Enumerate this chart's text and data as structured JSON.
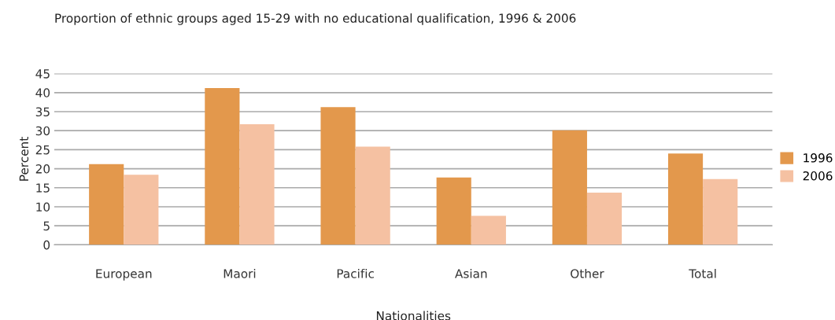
{
  "chart_data": {
    "type": "bar",
    "title": "Proportion of ethnic groups aged 15-29 with no educational qualification, 1996 & 2006",
    "xlabel": "Nationalities",
    "ylabel": "Percent",
    "categories": [
      "European",
      "Maori",
      "Pacific",
      "Asian",
      "Other",
      "Total"
    ],
    "series": [
      {
        "name": "1996",
        "color": "#e3984c",
        "values": [
          21.2,
          41.2,
          36.2,
          17.7,
          30.1,
          24.0
        ]
      },
      {
        "name": "2006",
        "color": "#f5c1a2",
        "values": [
          18.4,
          31.7,
          25.8,
          7.6,
          13.7,
          17.3
        ]
      }
    ],
    "ylim": [
      0,
      45
    ],
    "yticks": [
      0,
      5,
      10,
      15,
      20,
      25,
      30,
      35,
      40,
      45
    ],
    "grid": "y",
    "legend": "right"
  }
}
